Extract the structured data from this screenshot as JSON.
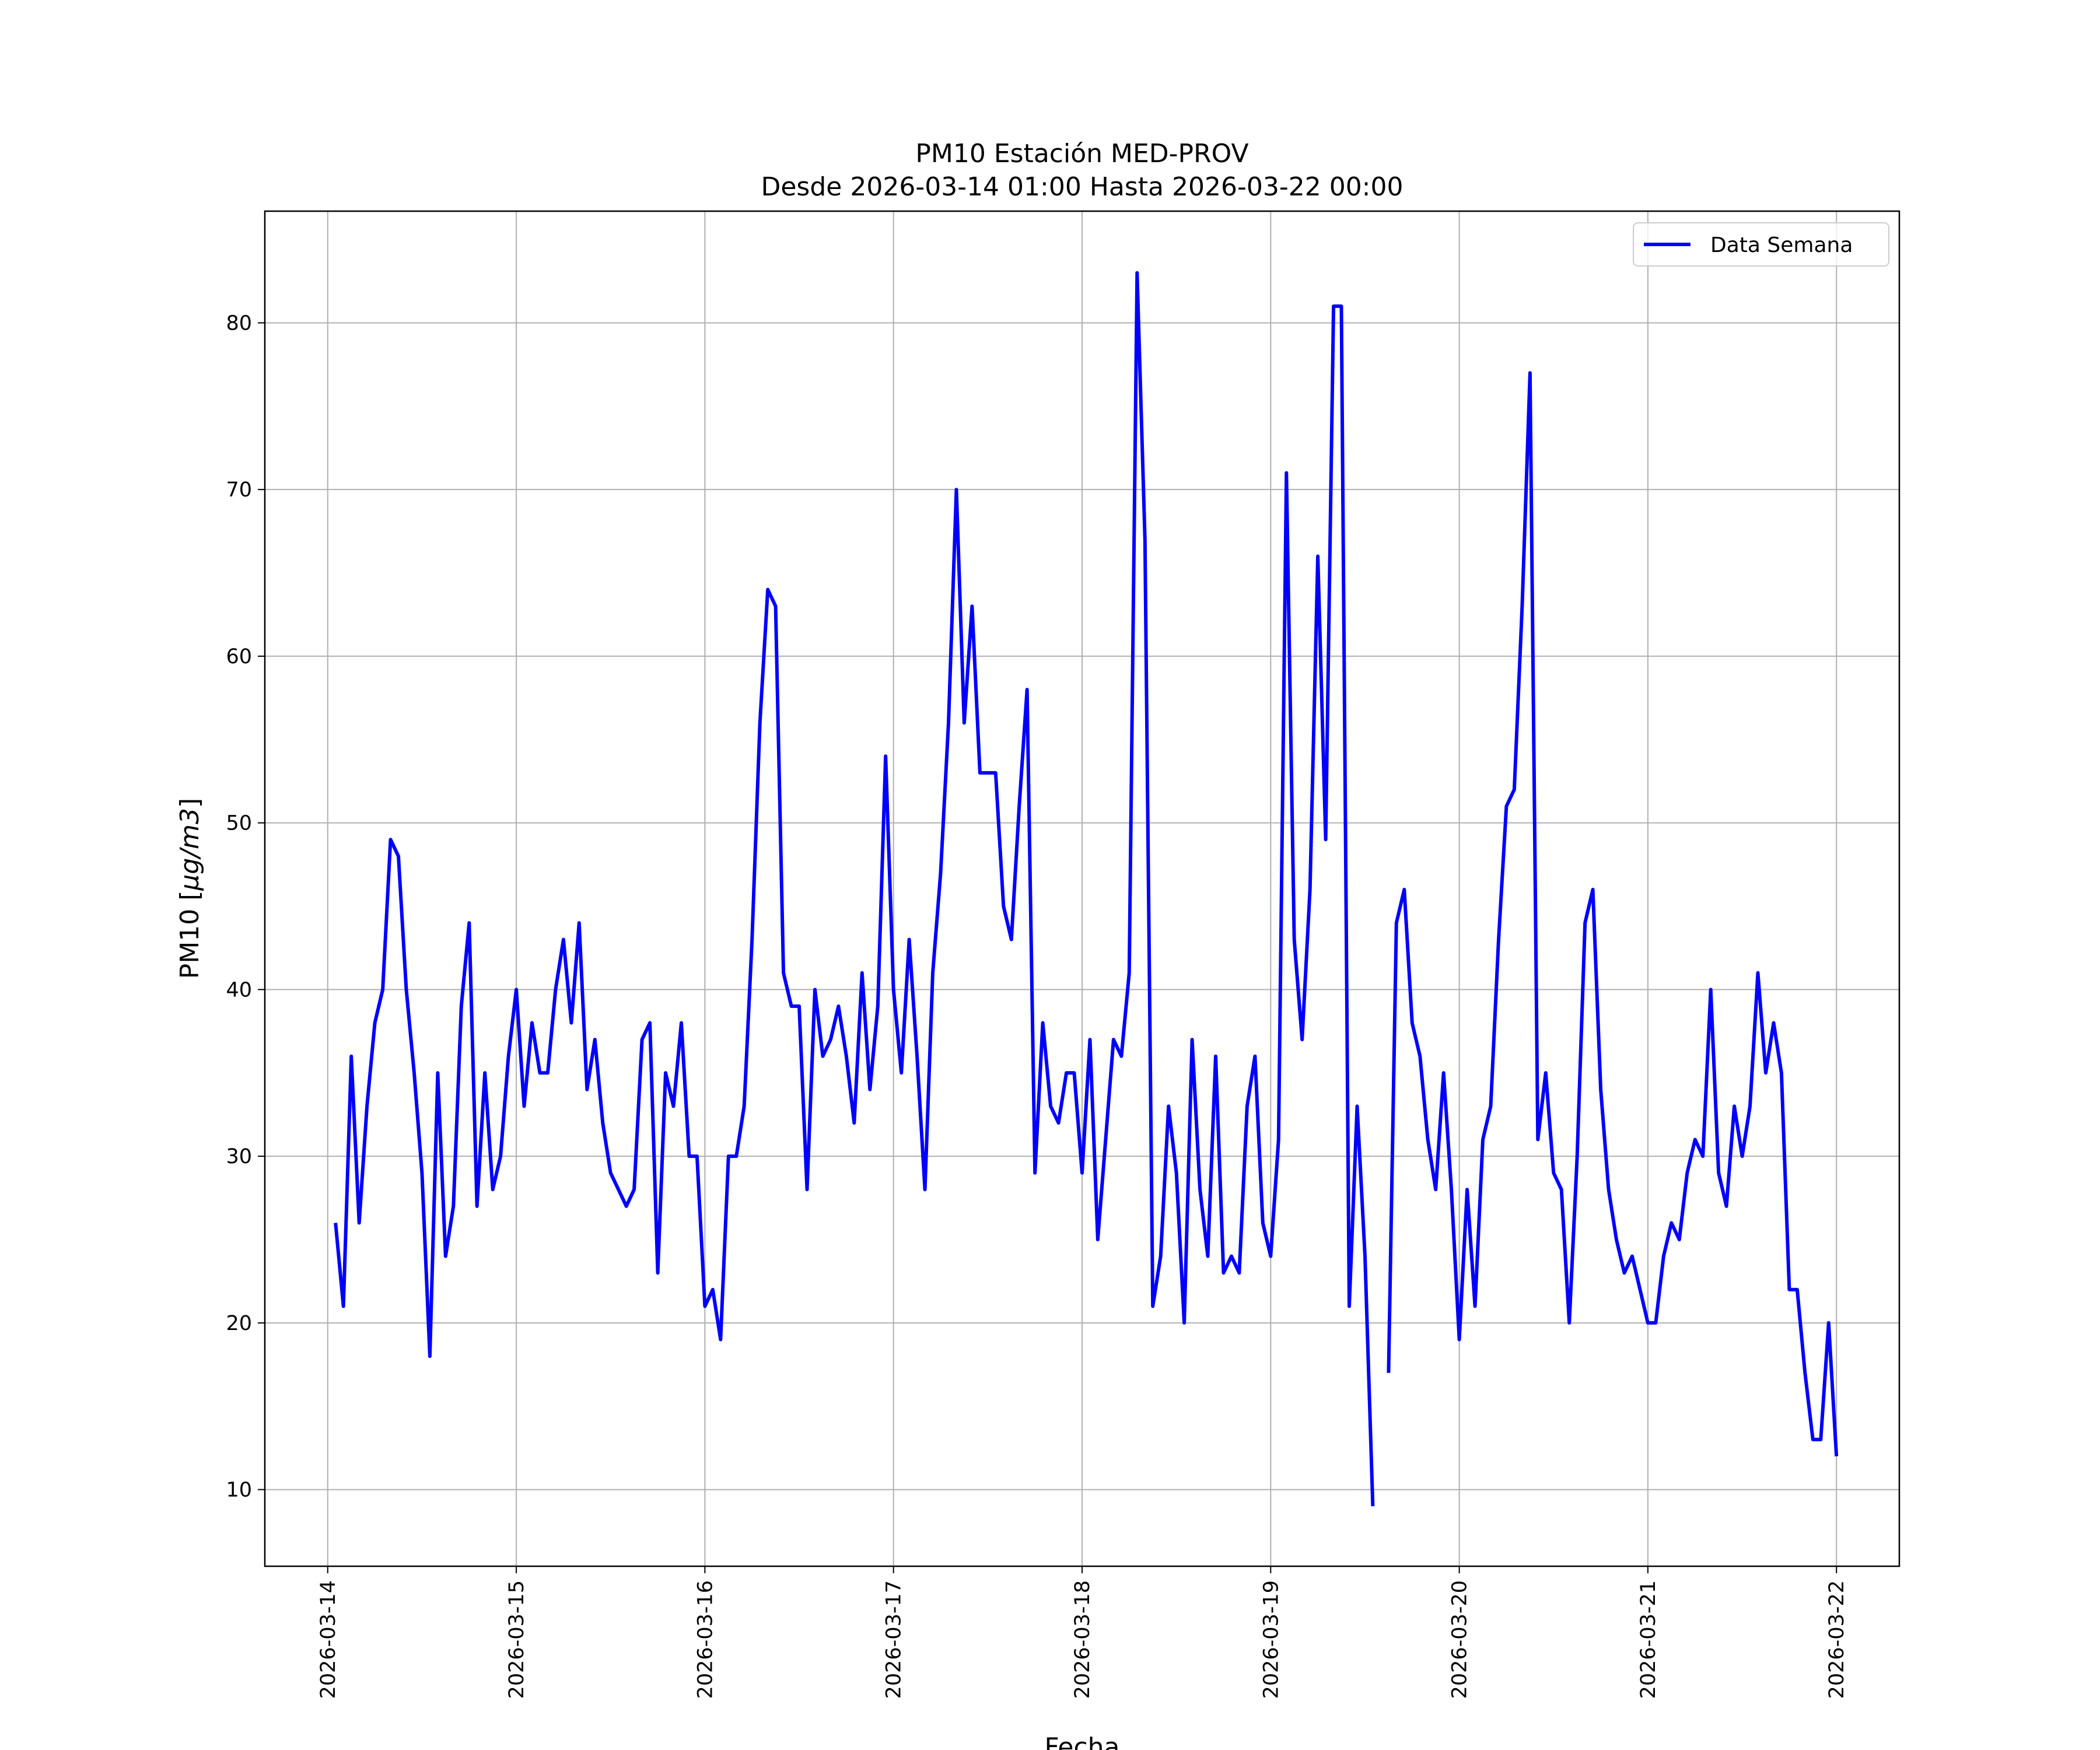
{
  "chart_data": {
    "type": "line",
    "title": "PM10 Estación MED-PROV",
    "subtitle": "Desde 2026-03-14 01:00 Hasta 2026-03-22 00:00",
    "xlabel": "Fecha",
    "ylabel": "PM10 [μg/m3]",
    "ylabel_math": "μg/m3",
    "x_start": "2026-03-14 01:00",
    "x_step": "1 hour",
    "xlim": [
      "2026-03-13 16:00",
      "2026-03-22 08:00"
    ],
    "ylim": [
      5.4,
      86.7
    ],
    "x_ticks": [
      "2026-03-14",
      "2026-03-15",
      "2026-03-16",
      "2026-03-17",
      "2026-03-18",
      "2026-03-19",
      "2026-03-20",
      "2026-03-21",
      "2026-03-22"
    ],
    "y_ticks": [
      10,
      20,
      30,
      40,
      50,
      60,
      70,
      80
    ],
    "grid": true,
    "legend": "top-right",
    "series": [
      {
        "name": "Data Semana",
        "color": "#0000ff",
        "values": [
          26,
          21,
          36,
          26,
          33,
          38,
          40,
          49,
          48,
          40,
          35,
          29,
          18,
          35,
          24,
          27,
          39,
          44,
          27,
          35,
          28,
          30,
          36,
          40,
          33,
          38,
          35,
          35,
          40,
          43,
          38,
          44,
          34,
          37,
          32,
          29,
          28,
          27,
          28,
          37,
          38,
          23,
          35,
          33,
          38,
          30,
          30,
          21,
          22,
          19,
          30,
          30,
          33,
          43,
          56,
          64,
          63,
          41,
          39,
          39,
          28,
          40,
          36,
          37,
          39,
          36,
          32,
          41,
          34,
          39,
          54,
          40,
          35,
          43,
          36,
          28,
          41,
          47,
          56,
          70,
          56,
          63,
          53,
          53,
          53,
          45,
          43,
          51,
          58,
          29,
          38,
          33,
          32,
          35,
          35,
          29,
          37,
          25,
          31,
          37,
          36,
          41,
          83,
          67,
          21,
          24,
          33,
          29,
          20,
          37,
          28,
          24,
          36,
          23,
          24,
          23,
          33,
          36,
          26,
          24,
          31,
          71,
          43,
          37,
          46,
          66,
          49,
          81,
          81,
          21,
          33,
          24,
          9,
          null,
          17,
          44,
          46,
          38,
          36,
          31,
          28,
          35,
          28,
          19,
          28,
          21,
          31,
          33,
          43,
          51,
          52,
          63,
          77,
          31,
          35,
          29,
          28,
          20,
          30,
          44,
          46,
          34,
          28,
          25,
          23,
          24,
          22,
          20,
          20,
          24,
          26,
          25,
          29,
          31,
          30,
          40,
          29,
          27,
          33,
          30,
          33,
          41,
          35,
          38,
          35,
          22,
          22,
          17,
          13,
          13,
          20,
          12
        ]
      }
    ]
  }
}
